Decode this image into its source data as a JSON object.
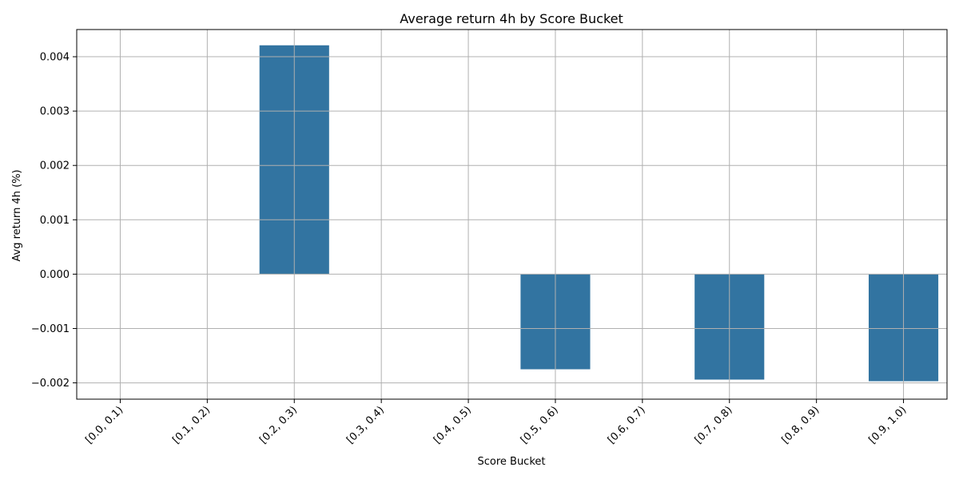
{
  "chart_data": {
    "type": "bar",
    "title": "Average return 4h by Score Bucket",
    "xlabel": "Score Bucket",
    "ylabel": "Avg return 4h (%)",
    "categories": [
      "[0.0, 0.1)",
      "[0.1, 0.2)",
      "[0.2, 0.3)",
      "[0.3, 0.4)",
      "[0.4, 0.5)",
      "[0.5, 0.6)",
      "[0.6, 0.7)",
      "[0.7, 0.8)",
      "[0.8, 0.9)",
      "[0.9, 1.0)"
    ],
    "values": [
      null,
      null,
      0.00421,
      null,
      null,
      -0.00175,
      null,
      -0.00194,
      null,
      -0.00197
    ],
    "ylim": [
      -0.0023,
      0.0045
    ],
    "yticks": [
      -0.002,
      -0.001,
      0.0,
      0.001,
      0.002,
      0.003,
      0.004
    ],
    "ytick_labels": [
      "−0.002",
      "−0.001",
      "0.000",
      "0.001",
      "0.002",
      "0.003",
      "0.004"
    ],
    "grid": true,
    "legend": "none",
    "bar_color": "#3274a1"
  }
}
